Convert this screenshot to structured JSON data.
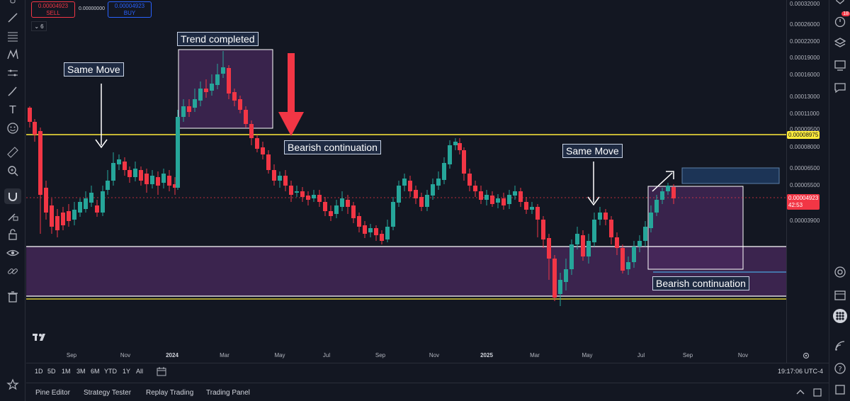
{
  "trade": {
    "sell_price": "0.00004923",
    "sell_label": "SELL",
    "spread": "0.00000000",
    "buy_price": "0.00004923",
    "buy_label": "BUY"
  },
  "indicator_count": "6",
  "annotations": {
    "trend_completed": "Trend completed",
    "same_move_left": "Same Move",
    "bearish_top": "Bearish continuation",
    "same_move_right": "Same Move",
    "bearish_bottom": "Bearish continuation"
  },
  "price_scale": {
    "labels": [
      "0.00032000",
      "0.00026000",
      "0.00022000",
      "0.00019000",
      "0.00016000",
      "0.00013000",
      "0.00011000",
      "0.00009500",
      "0.00008000",
      "0.00006500",
      "0.00005500",
      "0.00003900"
    ],
    "yellow_line_price": "0.00008975",
    "current_price": "0.00004923",
    "countdown": "42:53"
  },
  "time_axis": [
    "Sep",
    "Nov",
    "2024",
    "Mar",
    "May",
    "Jul",
    "Sep",
    "Nov",
    "2025",
    "Mar",
    "May",
    "Jul",
    "Sep",
    "Nov"
  ],
  "range_buttons": [
    "1D",
    "5D",
    "1M",
    "3M",
    "6M",
    "YTD",
    "1Y",
    "All"
  ],
  "clock": "19:17:06 UTC-4",
  "bottom_tabs": [
    "Pine Editor",
    "Strategy Tester",
    "Replay Trading",
    "Trading Panel"
  ],
  "notification_count": "18",
  "colors": {
    "background": "#131722",
    "up": "#26a69a",
    "down": "#f23645",
    "yellow_line": "#ffeb3b",
    "zone": "#4a2a5e",
    "annotation_bg": "#1e2a42"
  },
  "icons": {
    "left_toolbar": [
      "cursor-icon",
      "trend-line-icon",
      "fib-icon",
      "pattern-icon",
      "measure-icon",
      "brush-icon",
      "text-icon",
      "emoji-icon",
      "ruler-icon",
      "zoom-icon",
      "magnet-icon",
      "lock-drawing-icon",
      "lock-icon",
      "eye-icon",
      "link-icon",
      "trash-icon",
      "star-icon"
    ],
    "right_toolbar": [
      "alerts-icon",
      "layers-icon",
      "watchlist-icon",
      "chat-icon",
      "target-icon",
      "calendar-icon",
      "apps-icon",
      "signal-icon",
      "help-icon"
    ]
  }
}
